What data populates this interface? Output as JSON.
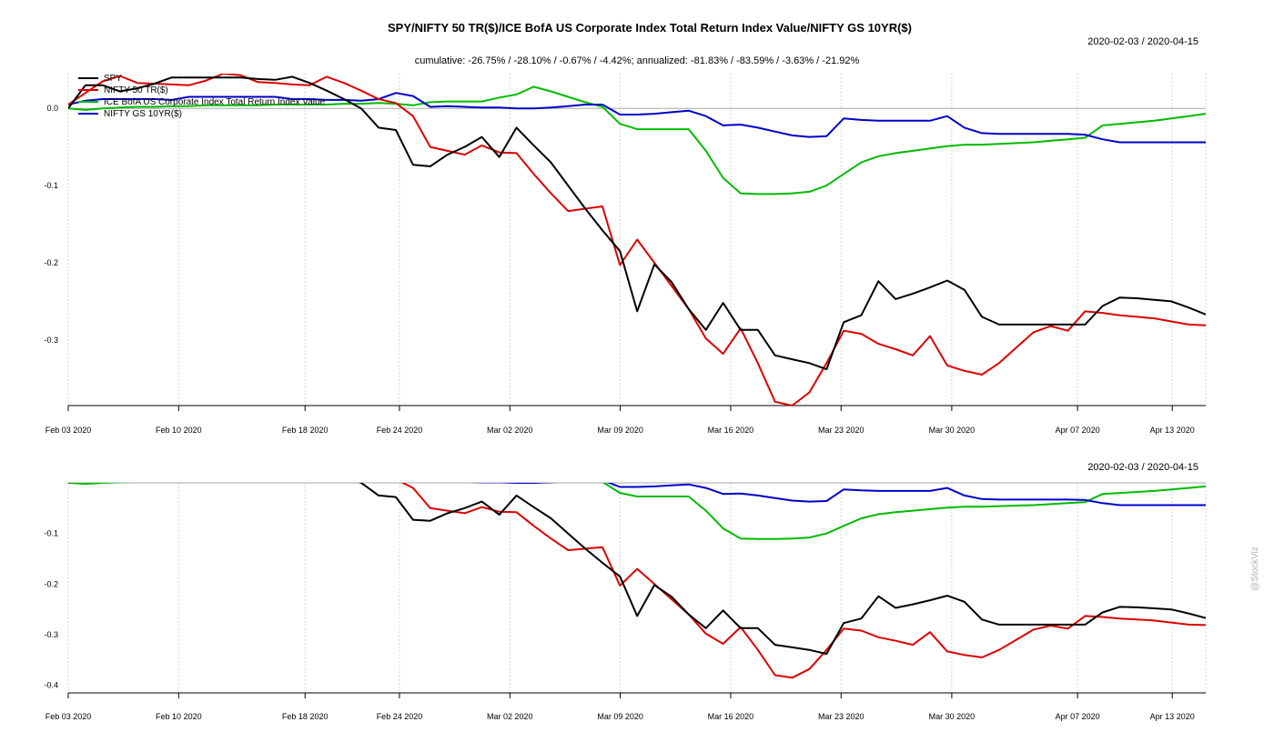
{
  "chart_data": {
    "type": "line",
    "title": "SPY/NIFTY 50 TR($)/ICE BofA US Corporate Index Total Return Index Value/NIFTY GS 10YR($)",
    "subtitle": "cumulative: -26.75% / -28.10% / -0.67% / -4.42%; annualized: -81.83% / -83.59% / -3.63% / -21.92%",
    "date_range": "2020-02-03 / 2020-04-15",
    "watermark": "@StockViz",
    "x_ticks": [
      "Feb 03 2020",
      "Feb 10 2020",
      "Feb 18 2020",
      "Feb 24 2020",
      "Mar 02 2020",
      "Mar 09 2020",
      "Mar 16 2020",
      "Mar 23 2020",
      "Mar 30 2020",
      "Apr 07 2020",
      "Apr 13 2020"
    ],
    "colors": {
      "spy": "#000000",
      "nifty50": "#dd0000",
      "corp": "#00bb00",
      "gs10": "#0000cc",
      "zero_line": "#a8a8a8",
      "grid": "#c8c8c8"
    },
    "series": [
      {
        "key": "spy",
        "name": "SPY",
        "color": "#000000",
        "values": [
          [
            0,
            0.0
          ],
          [
            0.57,
            0.03
          ],
          [
            1.14,
            0.03
          ],
          [
            1.71,
            0.022
          ],
          [
            2.29,
            0.026
          ],
          [
            2.86,
            0.032
          ],
          [
            3.43,
            0.04
          ],
          [
            4.0,
            0.04
          ],
          [
            4.57,
            0.04
          ],
          [
            5.14,
            0.04
          ],
          [
            5.71,
            0.04
          ],
          [
            6.29,
            0.038
          ],
          [
            6.86,
            0.037
          ],
          [
            7.43,
            0.041
          ],
          [
            8.0,
            0.033
          ],
          [
            8.57,
            0.023
          ],
          [
            9.14,
            0.012
          ],
          [
            9.71,
            0.0
          ],
          [
            10.29,
            -0.025
          ],
          [
            10.86,
            -0.028
          ],
          [
            11.43,
            -0.073
          ],
          [
            12.0,
            -0.075
          ],
          [
            12.57,
            -0.06
          ],
          [
            13.14,
            -0.05
          ],
          [
            13.71,
            -0.037
          ],
          [
            14.29,
            -0.063
          ],
          [
            14.86,
            -0.025
          ],
          [
            15.43,
            -0.048
          ],
          [
            16.0,
            -0.07
          ],
          [
            16.57,
            -0.1
          ],
          [
            17.14,
            -0.13
          ],
          [
            17.71,
            -0.158
          ],
          [
            18.29,
            -0.185
          ],
          [
            18.86,
            -0.263
          ],
          [
            19.43,
            -0.202
          ],
          [
            20.0,
            -0.225
          ],
          [
            20.57,
            -0.26
          ],
          [
            21.14,
            -0.287
          ],
          [
            21.71,
            -0.252
          ],
          [
            22.29,
            -0.287
          ],
          [
            22.86,
            -0.287
          ],
          [
            23.43,
            -0.32
          ],
          [
            24.0,
            -0.325
          ],
          [
            24.57,
            -0.33
          ],
          [
            25.14,
            -0.338
          ],
          [
            25.71,
            -0.277
          ],
          [
            26.29,
            -0.268
          ],
          [
            26.86,
            -0.224
          ],
          [
            27.43,
            -0.247
          ],
          [
            28.0,
            -0.24
          ],
          [
            28.57,
            -0.232
          ],
          [
            29.14,
            -0.223
          ],
          [
            29.71,
            -0.235
          ],
          [
            30.29,
            -0.27
          ],
          [
            30.86,
            -0.28
          ],
          [
            31.43,
            -0.28
          ],
          [
            32.0,
            -0.28
          ],
          [
            32.57,
            -0.28
          ],
          [
            33.14,
            -0.28
          ],
          [
            33.71,
            -0.28
          ],
          [
            34.29,
            -0.256
          ],
          [
            34.86,
            -0.245
          ],
          [
            35.43,
            -0.246
          ],
          [
            36.0,
            -0.248
          ],
          [
            36.57,
            -0.25
          ],
          [
            37.14,
            -0.258
          ],
          [
            37.71,
            -0.267
          ]
        ]
      },
      {
        "key": "nifty50",
        "name": "NIFTY 50 TR($)",
        "color": "#dd0000",
        "values": [
          [
            0,
            0.005
          ],
          [
            0.57,
            0.02
          ],
          [
            1.14,
            0.035
          ],
          [
            1.71,
            0.042
          ],
          [
            2.29,
            0.033
          ],
          [
            2.86,
            0.032
          ],
          [
            3.43,
            0.031
          ],
          [
            4.0,
            0.03
          ],
          [
            4.57,
            0.036
          ],
          [
            5.14,
            0.045
          ],
          [
            5.71,
            0.043
          ],
          [
            6.29,
            0.034
          ],
          [
            6.86,
            0.033
          ],
          [
            7.43,
            0.031
          ],
          [
            8.0,
            0.03
          ],
          [
            8.57,
            0.041
          ],
          [
            9.14,
            0.033
          ],
          [
            9.71,
            0.023
          ],
          [
            10.29,
            0.012
          ],
          [
            10.86,
            0.007
          ],
          [
            11.43,
            -0.01
          ],
          [
            12.0,
            -0.05
          ],
          [
            12.57,
            -0.055
          ],
          [
            13.14,
            -0.06
          ],
          [
            13.71,
            -0.048
          ],
          [
            14.29,
            -0.057
          ],
          [
            14.86,
            -0.058
          ],
          [
            15.43,
            -0.085
          ],
          [
            16.0,
            -0.11
          ],
          [
            16.57,
            -0.133
          ],
          [
            17.14,
            -0.13
          ],
          [
            17.71,
            -0.127
          ],
          [
            18.29,
            -0.203
          ],
          [
            18.86,
            -0.17
          ],
          [
            19.43,
            -0.2
          ],
          [
            20.0,
            -0.23
          ],
          [
            20.57,
            -0.26
          ],
          [
            21.14,
            -0.298
          ],
          [
            21.71,
            -0.318
          ],
          [
            22.29,
            -0.285
          ],
          [
            22.86,
            -0.33
          ],
          [
            23.43,
            -0.38
          ],
          [
            24.0,
            -0.385
          ],
          [
            24.57,
            -0.368
          ],
          [
            25.14,
            -0.33
          ],
          [
            25.71,
            -0.288
          ],
          [
            26.29,
            -0.292
          ],
          [
            26.86,
            -0.305
          ],
          [
            27.43,
            -0.312
          ],
          [
            28.0,
            -0.32
          ],
          [
            28.57,
            -0.295
          ],
          [
            29.14,
            -0.333
          ],
          [
            29.71,
            -0.34
          ],
          [
            30.29,
            -0.345
          ],
          [
            30.86,
            -0.33
          ],
          [
            31.43,
            -0.31
          ],
          [
            32.0,
            -0.29
          ],
          [
            32.57,
            -0.282
          ],
          [
            33.14,
            -0.288
          ],
          [
            33.71,
            -0.263
          ],
          [
            34.29,
            -0.265
          ],
          [
            34.86,
            -0.268
          ],
          [
            35.43,
            -0.27
          ],
          [
            36.0,
            -0.272
          ],
          [
            36.57,
            -0.276
          ],
          [
            37.14,
            -0.28
          ],
          [
            37.71,
            -0.281
          ]
        ]
      },
      {
        "key": "corp",
        "name": "ICE BofA US Corporate Index Total Return Index Value",
        "color": "#00bb00",
        "values": [
          [
            0,
            0.0
          ],
          [
            0.57,
            -0.002
          ],
          [
            1.14,
            0.0
          ],
          [
            1.71,
            0.001
          ],
          [
            2.29,
            0.002
          ],
          [
            2.86,
            0.002
          ],
          [
            3.43,
            0.003
          ],
          [
            4.0,
            0.003
          ],
          [
            4.57,
            0.004
          ],
          [
            5.14,
            0.004
          ],
          [
            5.71,
            0.004
          ],
          [
            6.29,
            0.004
          ],
          [
            6.86,
            0.005
          ],
          [
            7.43,
            0.005
          ],
          [
            8.0,
            0.005
          ],
          [
            8.57,
            0.005
          ],
          [
            9.14,
            0.006
          ],
          [
            9.71,
            0.006
          ],
          [
            10.29,
            0.007
          ],
          [
            10.86,
            0.006
          ],
          [
            11.43,
            0.004
          ],
          [
            12.0,
            0.008
          ],
          [
            12.57,
            0.009
          ],
          [
            13.14,
            0.009
          ],
          [
            13.71,
            0.009
          ],
          [
            14.29,
            0.014
          ],
          [
            14.86,
            0.018
          ],
          [
            15.43,
            0.028
          ],
          [
            16.0,
            0.022
          ],
          [
            16.57,
            0.015
          ],
          [
            17.14,
            0.008
          ],
          [
            17.71,
            0.002
          ],
          [
            18.29,
            -0.02
          ],
          [
            18.86,
            -0.027
          ],
          [
            19.43,
            -0.027
          ],
          [
            20.0,
            -0.027
          ],
          [
            20.57,
            -0.027
          ],
          [
            21.14,
            -0.055
          ],
          [
            21.71,
            -0.09
          ],
          [
            22.29,
            -0.11
          ],
          [
            22.86,
            -0.111
          ],
          [
            23.43,
            -0.111
          ],
          [
            24.0,
            -0.11
          ],
          [
            24.57,
            -0.108
          ],
          [
            25.14,
            -0.1
          ],
          [
            25.71,
            -0.085
          ],
          [
            26.29,
            -0.07
          ],
          [
            26.86,
            -0.062
          ],
          [
            27.43,
            -0.058
          ],
          [
            28.0,
            -0.055
          ],
          [
            28.57,
            -0.052
          ],
          [
            29.14,
            -0.049
          ],
          [
            29.71,
            -0.047
          ],
          [
            30.29,
            -0.047
          ],
          [
            30.86,
            -0.046
          ],
          [
            31.43,
            -0.045
          ],
          [
            32.0,
            -0.044
          ],
          [
            32.57,
            -0.042
          ],
          [
            33.14,
            -0.04
          ],
          [
            33.71,
            -0.038
          ],
          [
            34.29,
            -0.022
          ],
          [
            34.86,
            -0.02
          ],
          [
            35.43,
            -0.018
          ],
          [
            36.0,
            -0.016
          ],
          [
            36.57,
            -0.013
          ],
          [
            37.14,
            -0.01
          ],
          [
            37.71,
            -0.007
          ]
        ]
      },
      {
        "key": "gs10",
        "name": "NIFTY GS 10YR($)",
        "color": "#0000cc",
        "values": [
          [
            0,
            0.005
          ],
          [
            0.57,
            0.01
          ],
          [
            1.14,
            0.012
          ],
          [
            1.71,
            0.012
          ],
          [
            2.29,
            0.012
          ],
          [
            2.86,
            0.012
          ],
          [
            3.43,
            0.011
          ],
          [
            4.0,
            0.015
          ],
          [
            4.57,
            0.015
          ],
          [
            5.14,
            0.015
          ],
          [
            5.71,
            0.015
          ],
          [
            6.29,
            0.015
          ],
          [
            6.86,
            0.015
          ],
          [
            7.43,
            0.012
          ],
          [
            8.0,
            0.012
          ],
          [
            8.57,
            0.011
          ],
          [
            9.14,
            0.011
          ],
          [
            9.71,
            0.01
          ],
          [
            10.29,
            0.012
          ],
          [
            10.86,
            0.02
          ],
          [
            11.43,
            0.016
          ],
          [
            12.0,
            0.002
          ],
          [
            12.57,
            0.003
          ],
          [
            13.14,
            0.002
          ],
          [
            13.71,
            0.001
          ],
          [
            14.29,
            0.001
          ],
          [
            14.86,
            0.0
          ],
          [
            15.43,
            0.0
          ],
          [
            16.0,
            0.001
          ],
          [
            16.57,
            0.003
          ],
          [
            17.14,
            0.005
          ],
          [
            17.71,
            0.005
          ],
          [
            18.29,
            -0.008
          ],
          [
            18.86,
            -0.008
          ],
          [
            19.43,
            -0.007
          ],
          [
            20.0,
            -0.005
          ],
          [
            20.57,
            -0.003
          ],
          [
            21.14,
            -0.01
          ],
          [
            21.71,
            -0.022
          ],
          [
            22.29,
            -0.021
          ],
          [
            22.86,
            -0.025
          ],
          [
            23.43,
            -0.03
          ],
          [
            24.0,
            -0.035
          ],
          [
            24.57,
            -0.037
          ],
          [
            25.14,
            -0.036
          ],
          [
            25.71,
            -0.013
          ],
          [
            26.29,
            -0.015
          ],
          [
            26.86,
            -0.016
          ],
          [
            27.43,
            -0.016
          ],
          [
            28.0,
            -0.016
          ],
          [
            28.57,
            -0.016
          ],
          [
            29.14,
            -0.01
          ],
          [
            29.71,
            -0.025
          ],
          [
            30.29,
            -0.032
          ],
          [
            30.86,
            -0.033
          ],
          [
            31.43,
            -0.033
          ],
          [
            32.0,
            -0.033
          ],
          [
            32.57,
            -0.033
          ],
          [
            33.14,
            -0.033
          ],
          [
            33.71,
            -0.034
          ],
          [
            34.29,
            -0.04
          ],
          [
            34.86,
            -0.044
          ],
          [
            35.43,
            -0.044
          ],
          [
            36.0,
            -0.044
          ],
          [
            36.57,
            -0.044
          ],
          [
            37.14,
            -0.044
          ],
          [
            37.71,
            -0.044
          ]
        ]
      }
    ],
    "panels": [
      {
        "id": "top",
        "ylim": [
          -0.385,
          0.045
        ],
        "y_ticks": [
          0.0,
          -0.1,
          -0.2,
          -0.3
        ],
        "y_tick_labels": [
          "0.0",
          "-0.1",
          "-0.2",
          "-0.3"
        ],
        "legend": "top-left",
        "zero_line": true
      },
      {
        "id": "bottom",
        "ylim": [
          -0.415,
          0.0
        ],
        "y_ticks": [
          -0.1,
          -0.2,
          -0.3,
          -0.4
        ],
        "y_tick_labels": [
          "-0.1",
          "-0.2",
          "-0.3",
          "-0.4"
        ],
        "legend": "none",
        "zero_line": true
      }
    ],
    "xlim": [
      0,
      37.71
    ],
    "x_tick_positions": [
      0,
      3.66,
      7.85,
      10.98,
      14.64,
      18.3,
      21.96,
      25.62,
      29.29,
      33.46,
      36.6
    ],
    "grid": true
  }
}
